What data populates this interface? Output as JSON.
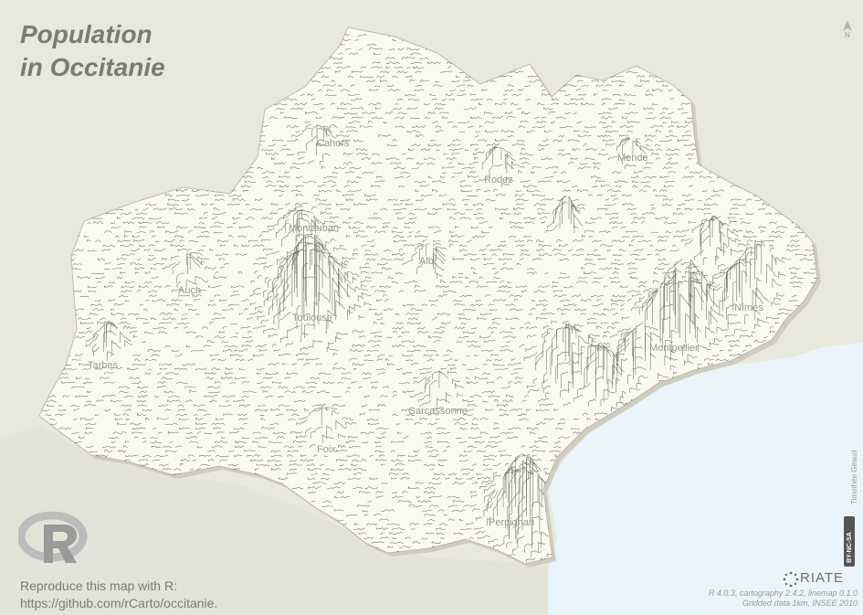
{
  "title": {
    "line1": "Population",
    "line2": "in Occitanie"
  },
  "north_label": "N",
  "cities": [
    {
      "name": "Cahors"
    },
    {
      "name": "Mende"
    },
    {
      "name": "Rodez"
    },
    {
      "name": "Montauban"
    },
    {
      "name": "Albi"
    },
    {
      "name": "Auch"
    },
    {
      "name": "Toulouse"
    },
    {
      "name": "Nîmes"
    },
    {
      "name": "Montpellier"
    },
    {
      "name": "Tarbes"
    },
    {
      "name": "Carcassonne"
    },
    {
      "name": "Foix"
    },
    {
      "name": "Perpignan"
    }
  ],
  "reproduce": {
    "line1": "Reproduce this map with R:",
    "line2": "https://github.com/rCarto/occitanie."
  },
  "logo_text": "RIATE",
  "credits": {
    "line1": "R 4.0.3, cartography 2.4.2, linemap 0.1.0",
    "line2": "Gridded data 1km, INSEE 2010"
  },
  "author": "Timothée Giraud",
  "license": "BY-NC-SA",
  "colors": {
    "background": "#e9e8dd",
    "region": "#fbfaf0",
    "sea": "#eaf4fb",
    "lines": "#6e6e68",
    "title": "#7b7b75"
  }
}
